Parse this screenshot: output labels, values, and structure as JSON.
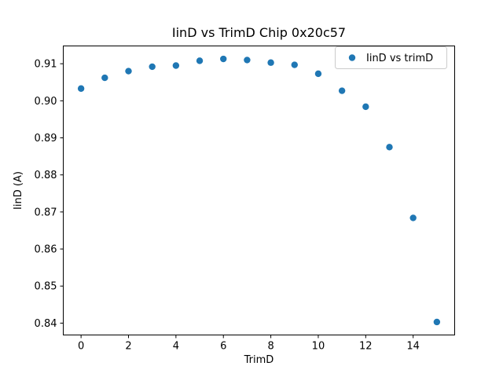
{
  "figure": {
    "title": "IinD vs TrimD Chip 0x20c57",
    "xlabel": "TrimD",
    "ylabel": "IinD (A)",
    "legend": {
      "label": "IinD vs trimD",
      "position": "upper right"
    },
    "colors": {
      "marker": "#1f77b4",
      "spine": "#000000",
      "text": "#000000",
      "legend_border": "#cccccc",
      "background": "#ffffff"
    }
  },
  "chart_data": {
    "type": "scatter",
    "title": "IinD vs TrimD Chip 0x20c57",
    "xlabel": "TrimD",
    "ylabel": "IinD (A)",
    "x": [
      0,
      1,
      2,
      3,
      4,
      5,
      6,
      7,
      8,
      9,
      10,
      11,
      12,
      13,
      14,
      15
    ],
    "series": [
      {
        "name": "IinD vs trimD",
        "values": [
          0.9033,
          0.9062,
          0.908,
          0.9092,
          0.9095,
          0.9108,
          0.9113,
          0.911,
          0.9103,
          0.9097,
          0.9073,
          0.9027,
          0.8984,
          0.8875,
          0.8684,
          0.8403
        ]
      }
    ],
    "xticks": [
      0,
      2,
      4,
      6,
      8,
      10,
      12,
      14
    ],
    "yticks": [
      0.84,
      0.85,
      0.86,
      0.87,
      0.88,
      0.89,
      0.9,
      0.91
    ],
    "xlim": [
      -0.75,
      15.75
    ],
    "ylim": [
      0.8368,
      0.9148
    ],
    "grid": false,
    "legend_position": "upper right",
    "marker": "circle",
    "marker_color": "#1f77b4"
  }
}
